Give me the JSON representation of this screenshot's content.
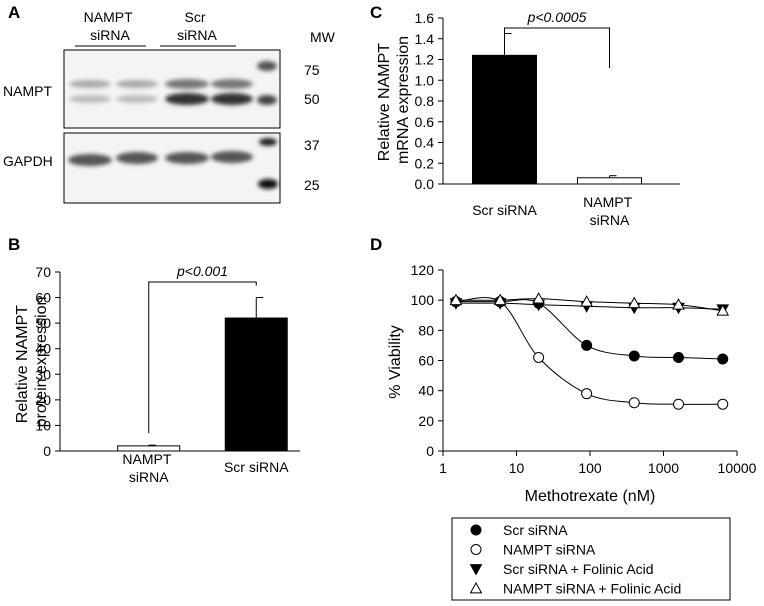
{
  "panel_a": {
    "label": "A",
    "lanes": [
      "NAMPT siRNA",
      "Scr siRNA"
    ],
    "mw_header": "MW",
    "rows": [
      "NAMPT",
      "GAPDH"
    ],
    "mw_markers": [
      "75",
      "50",
      "37",
      "25"
    ]
  },
  "chart_data": [
    {
      "type": "bar",
      "label": "B",
      "y_label": "Relative NAMPT protein expression",
      "categories": [
        "NAMPT siRNA",
        "Scr siRNA"
      ],
      "values": [
        2,
        52
      ],
      "errors": [
        0.3,
        8
      ],
      "colors": [
        "#ffffff",
        "#000000"
      ],
      "ylim": [
        0,
        70
      ],
      "yticks": [
        0,
        10,
        20,
        30,
        40,
        50,
        60,
        70
      ],
      "annotation": "p<0.001"
    },
    {
      "type": "bar",
      "label": "C",
      "y_label": "Relative NAMPT mRNA expression",
      "categories": [
        "Scr siRNA",
        "NAMPT siRNA"
      ],
      "values": [
        1.24,
        0.06
      ],
      "errors": [
        0.21,
        0.02
      ],
      "colors": [
        "#000000",
        "#ffffff"
      ],
      "ylim": [
        0,
        1.6
      ],
      "yticks": [
        {
          "value": 0,
          "label": "0.0"
        },
        0.2,
        0.4,
        0.6,
        0.8,
        {
          "value": 1,
          "label": "1.0"
        },
        1.2,
        1.4,
        1.6
      ],
      "annotation": "p<0.0005"
    },
    {
      "type": "scatter",
      "label": "D",
      "x_label": "Methotrexate (nM)",
      "y_label": "% Viability",
      "log_x": true,
      "x": [
        1.5,
        6,
        20,
        90,
        400,
        1600,
        6400
      ],
      "xlim": [
        1,
        10000
      ],
      "xticks": [
        1,
        10,
        100,
        1000,
        10000
      ],
      "ylim": [
        0,
        120
      ],
      "yticks": [
        0,
        20,
        40,
        60,
        80,
        100,
        120
      ],
      "series": [
        {
          "name": "Scr siRNA",
          "marker": "circle",
          "filled": true,
          "color": "#000000",
          "values": [
            99,
            99,
            98,
            70,
            63,
            62,
            61
          ]
        },
        {
          "name": "NAMPT siRNA",
          "marker": "circle",
          "filled": false,
          "color": "#000000",
          "values": [
            99,
            99,
            62,
            38,
            32,
            31,
            31
          ]
        },
        {
          "name": "Scr siRNA + Folinic Acid",
          "marker": "triangle-down",
          "filled": true,
          "color": "#000000",
          "values": [
            98,
            98,
            97,
            96,
            95,
            95,
            94
          ]
        },
        {
          "name": "NAMPT siRNA + Folinic Acid",
          "marker": "triangle-up",
          "filled": false,
          "color": "#000000",
          "values": [
            100,
            100,
            101,
            99,
            98,
            97,
            93
          ]
        }
      ],
      "legend": "bottom"
    }
  ]
}
